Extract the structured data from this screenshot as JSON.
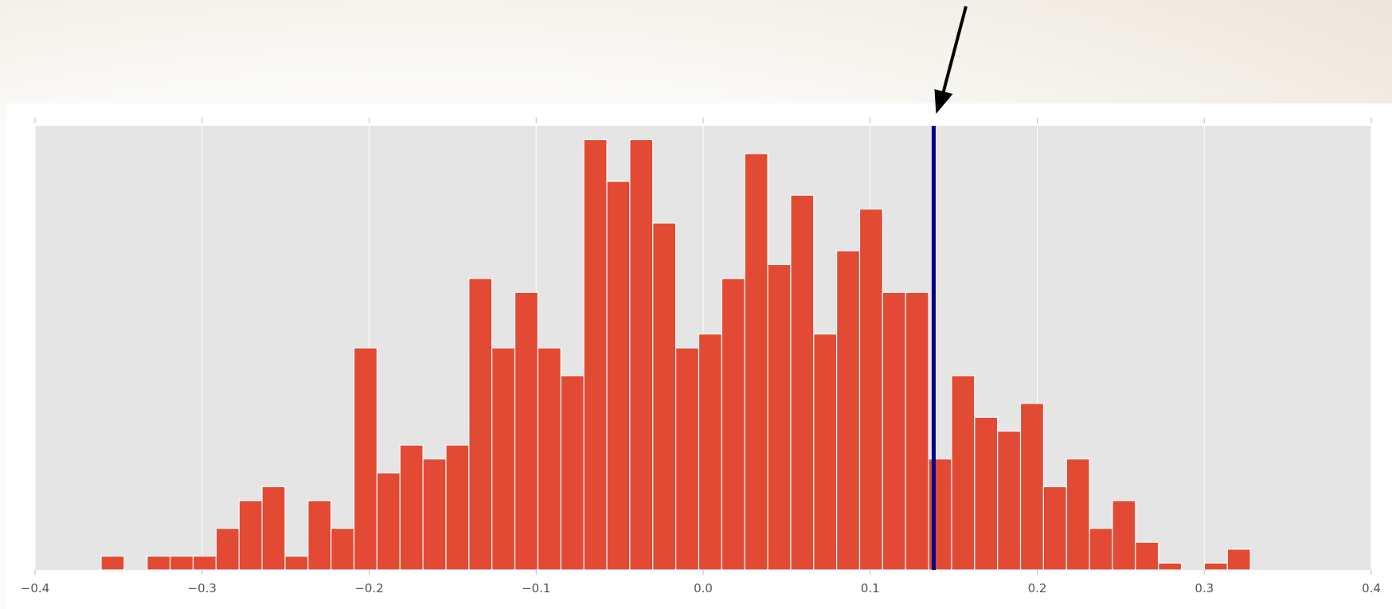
{
  "chart_data": {
    "type": "bar",
    "title": "",
    "xlabel": "",
    "ylabel": "",
    "xlim": [
      -0.4,
      0.4
    ],
    "ylim": [
      0,
      32
    ],
    "grid": "on",
    "xticks": [
      "−0.4",
      "−0.3",
      "−0.2",
      "−0.1",
      "0.0",
      "0.1",
      "0.2",
      "0.3",
      "0.4"
    ],
    "bin_edges_start": -0.3604,
    "bin_width": 0.01376,
    "counts": [
      1,
      0,
      1,
      1,
      1,
      3,
      5,
      6,
      1,
      5,
      3,
      16,
      7,
      9,
      8,
      9,
      21,
      16,
      20,
      16,
      14,
      31,
      28,
      31,
      25,
      16,
      17,
      21,
      30,
      22,
      27,
      17,
      23,
      26,
      20,
      20,
      8,
      14,
      11,
      10,
      12,
      6,
      8,
      3,
      5,
      2,
      0.5,
      0,
      0.5,
      1.5
    ],
    "bar_color": "#E24A33",
    "reference_line": {
      "x": 0.138,
      "color": "#00008B"
    },
    "annotation": "arrow pointing down at reference line"
  }
}
